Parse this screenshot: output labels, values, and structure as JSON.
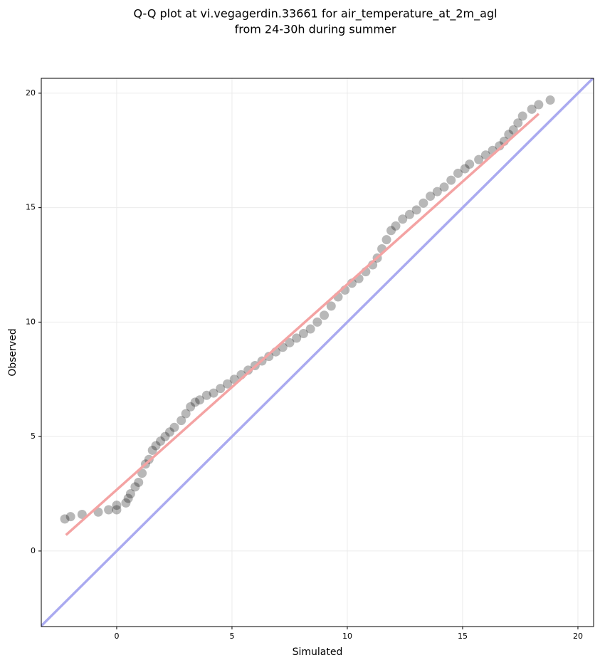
{
  "chart_data": {
    "type": "scatter",
    "title": [
      "Q-Q plot at vi.vegagerdin.33661 for air_temperature_at_2m_agl",
      "from 24-30h during summer"
    ],
    "xlabel": "Simulated",
    "ylabel": "Observed",
    "xlim": [
      -3.27,
      20.68
    ],
    "ylim": [
      -3.3,
      20.65
    ],
    "xticks": [
      0,
      5,
      10,
      15,
      20
    ],
    "yticks": [
      0,
      5,
      10,
      15,
      20
    ],
    "grid": true,
    "color": "#000000",
    "x": [
      -2.25,
      -2.0,
      -1.5,
      -0.8,
      -0.35,
      0,
      0,
      0.4,
      0.5,
      0.6,
      0.8,
      0.95,
      1.1,
      1.25,
      1.4,
      1.55,
      1.7,
      1.9,
      2.1,
      2.3,
      2.5,
      2.8,
      3.0,
      3.2,
      3.4,
      3.6,
      3.9,
      4.2,
      4.5,
      4.8,
      5.1,
      5.4,
      5.7,
      6.0,
      6.3,
      6.6,
      6.9,
      7.2,
      7.5,
      7.8,
      8.1,
      8.4,
      8.7,
      9.0,
      9.3,
      9.6,
      9.9,
      10.2,
      10.5,
      10.8,
      11.1,
      11.3,
      11.5,
      11.7,
      11.9,
      12.1,
      12.4,
      12.7,
      13.0,
      13.3,
      13.6,
      13.9,
      14.2,
      14.5,
      14.8,
      15.1,
      15.3,
      15.7,
      16.0,
      16.3,
      16.6,
      16.8,
      17.0,
      17.2,
      17.4,
      17.6,
      18.0,
      18.3,
      18.8
    ],
    "values": [
      1.4,
      1.5,
      1.6,
      1.7,
      1.8,
      1.8,
      2.0,
      2.1,
      2.3,
      2.5,
      2.8,
      3.0,
      3.4,
      3.8,
      4.0,
      4.4,
      4.6,
      4.8,
      5.0,
      5.2,
      5.4,
      5.7,
      6.0,
      6.3,
      6.5,
      6.6,
      6.8,
      6.9,
      7.1,
      7.3,
      7.5,
      7.7,
      7.9,
      8.1,
      8.3,
      8.5,
      8.7,
      8.9,
      9.1,
      9.3,
      9.5,
      9.7,
      10.0,
      10.3,
      10.7,
      11.1,
      11.4,
      11.7,
      11.9,
      12.2,
      12.5,
      12.8,
      13.2,
      13.6,
      14.0,
      14.2,
      14.5,
      14.7,
      14.9,
      15.2,
      15.5,
      15.7,
      15.9,
      16.2,
      16.5,
      16.7,
      16.9,
      17.1,
      17.3,
      17.5,
      17.7,
      17.9,
      18.2,
      18.4,
      18.7,
      19.0,
      19.3,
      19.5,
      19.7
    ],
    "fit_line": {
      "x": [
        -2.2,
        18.3
      ],
      "y": [
        0.7,
        19.1
      ],
      "color": "#f4a3a3"
    },
    "identity_line": {
      "x": [
        -3.3,
        20.68
      ],
      "y": [
        -3.3,
        20.68
      ],
      "color": "#aaaaf0"
    }
  }
}
